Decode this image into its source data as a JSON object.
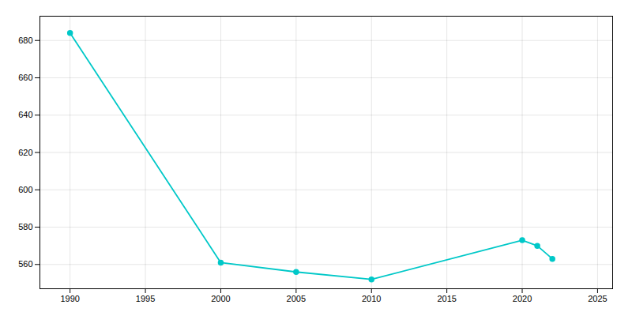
{
  "chart_data": {
    "type": "line",
    "x": [
      1990,
      2000,
      2005,
      2010,
      2020,
      2021,
      2022
    ],
    "values": [
      684,
      561,
      556,
      552,
      573,
      570,
      563
    ],
    "color": "#00C8C8",
    "marker": "circle",
    "xlim": [
      1988,
      2026
    ],
    "ylim": [
      547,
      693
    ],
    "xticks": [
      1990,
      1995,
      2000,
      2005,
      2010,
      2015,
      2020,
      2025
    ],
    "yticks": [
      560,
      580,
      600,
      620,
      640,
      660,
      680
    ],
    "grid": true
  }
}
